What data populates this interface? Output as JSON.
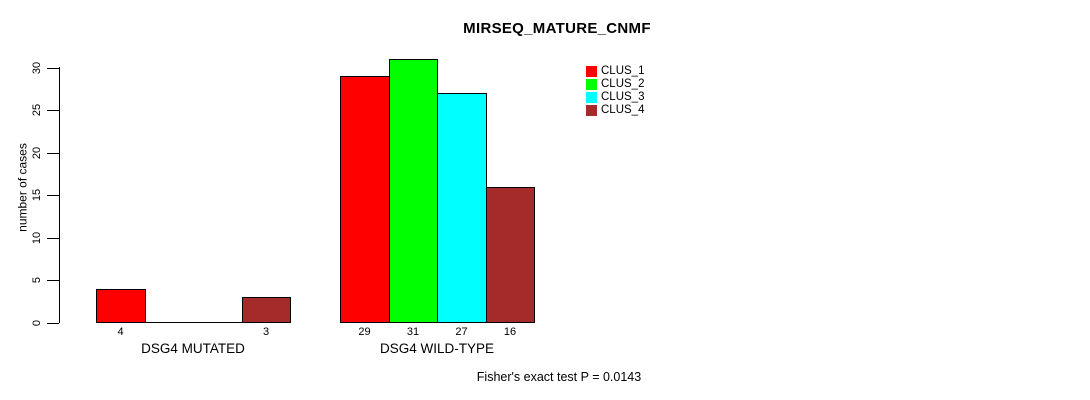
{
  "title": "MIRSEQ_MATURE_CNMF",
  "footer": "Fisher's exact test P = 0.0143",
  "chart_data": {
    "type": "bar",
    "grouped": true,
    "categories": [
      "DSG4 MUTATED",
      "DSG4 WILD-TYPE"
    ],
    "series": [
      {
        "name": "CLUS_1",
        "color": "#ff0000",
        "values": [
          4,
          29
        ]
      },
      {
        "name": "CLUS_2",
        "color": "#00ff00",
        "values": [
          0,
          31
        ]
      },
      {
        "name": "CLUS_3",
        "color": "#00ffff",
        "values": [
          0,
          27
        ]
      },
      {
        "name": "CLUS_4",
        "color": "#a52a2a",
        "values": [
          3,
          16
        ]
      }
    ],
    "bar_value_labels": [
      [
        "4",
        "",
        "",
        "3"
      ],
      [
        "29",
        "31",
        "27",
        "16"
      ]
    ],
    "title": "MIRSEQ_MATURE_CNMF",
    "xlabel": "",
    "ylabel": "number of cases",
    "yticks": [
      0,
      5,
      10,
      15,
      20,
      25,
      30
    ],
    "ylim": [
      0,
      31
    ],
    "grid": false,
    "legend_position": "top-right",
    "annotation": "Fisher's exact test P = 0.0143",
    "axis_color": "#000000",
    "bar_border_color": "#000000"
  }
}
